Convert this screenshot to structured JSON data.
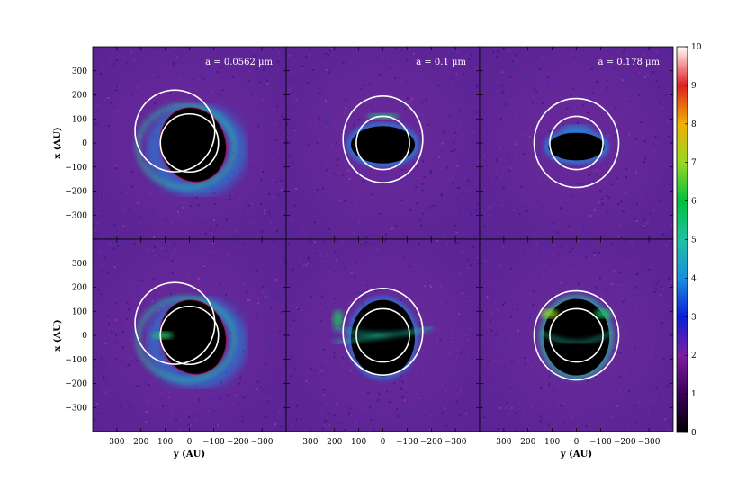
{
  "chart_data": {
    "type": "heatmap",
    "grid": {
      "rows": 2,
      "cols": 3
    },
    "panel_titles": [
      "a = 0.0562 μm",
      "a = 0.1 μm",
      "a = 0.178 μm"
    ],
    "xlabel": "y (AU)",
    "ylabel": "x (AU)",
    "x_range": [
      400,
      -400
    ],
    "y_range": [
      -400,
      400
    ],
    "x_ticks": [
      300,
      200,
      100,
      0,
      -100,
      -200,
      -300
    ],
    "x_tick_labels": [
      "300",
      "200",
      "100",
      "0",
      "−100",
      "−200",
      "−300"
    ],
    "y_ticks": [
      300,
      200,
      100,
      0,
      -100,
      -200,
      -300
    ],
    "y_tick_labels": [
      "300",
      "200",
      "100",
      "0",
      "−100",
      "−200",
      "−300"
    ],
    "colorbar": {
      "min": 0,
      "max": 10,
      "ticks": [
        0,
        1,
        2,
        3,
        4,
        5,
        6,
        7,
        8,
        9,
        10
      ],
      "tick_labels": [
        "0",
        "1",
        "2",
        "3",
        "4",
        "5",
        "6",
        "7",
        "8",
        "9",
        "10"
      ],
      "colors": [
        "#000000",
        "#3b005a",
        "#7a1fa0",
        "#0c1fd8",
        "#1a8fe0",
        "#20c0a0",
        "#00c040",
        "#9ad820",
        "#f0b000",
        "#e02020",
        "#ffffff"
      ]
    },
    "panels": [
      {
        "row": 0,
        "col": 0,
        "title": "a = 0.0562 μm",
        "inner_contour_radius": 120,
        "outer_contour": {
          "cx": 60,
          "cy": 50,
          "rx": 165,
          "ry": 170
        }
      },
      {
        "row": 0,
        "col": 1,
        "title": "a = 0.1 μm",
        "inner_contour_radius": 110,
        "outer_contour": {
          "cx": 0,
          "cy": 15,
          "rx": 165,
          "ry": 180
        }
      },
      {
        "row": 0,
        "col": 2,
        "title": "a = 0.178 μm",
        "inner_contour_radius": 110,
        "outer_contour": {
          "cx": 0,
          "cy": 0,
          "rx": 175,
          "ry": 185
        }
      },
      {
        "row": 1,
        "col": 0,
        "title": "",
        "inner_contour_radius": 120,
        "outer_contour": {
          "cx": 60,
          "cy": 50,
          "rx": 165,
          "ry": 170
        }
      },
      {
        "row": 1,
        "col": 1,
        "title": "",
        "inner_contour_radius": 110,
        "outer_contour": {
          "cx": 0,
          "cy": 15,
          "rx": 165,
          "ry": 180
        }
      },
      {
        "row": 1,
        "col": 2,
        "title": "",
        "inner_contour_radius": 110,
        "outer_contour": {
          "cx": 0,
          "cy": 0,
          "rx": 175,
          "ry": 185
        }
      }
    ]
  }
}
